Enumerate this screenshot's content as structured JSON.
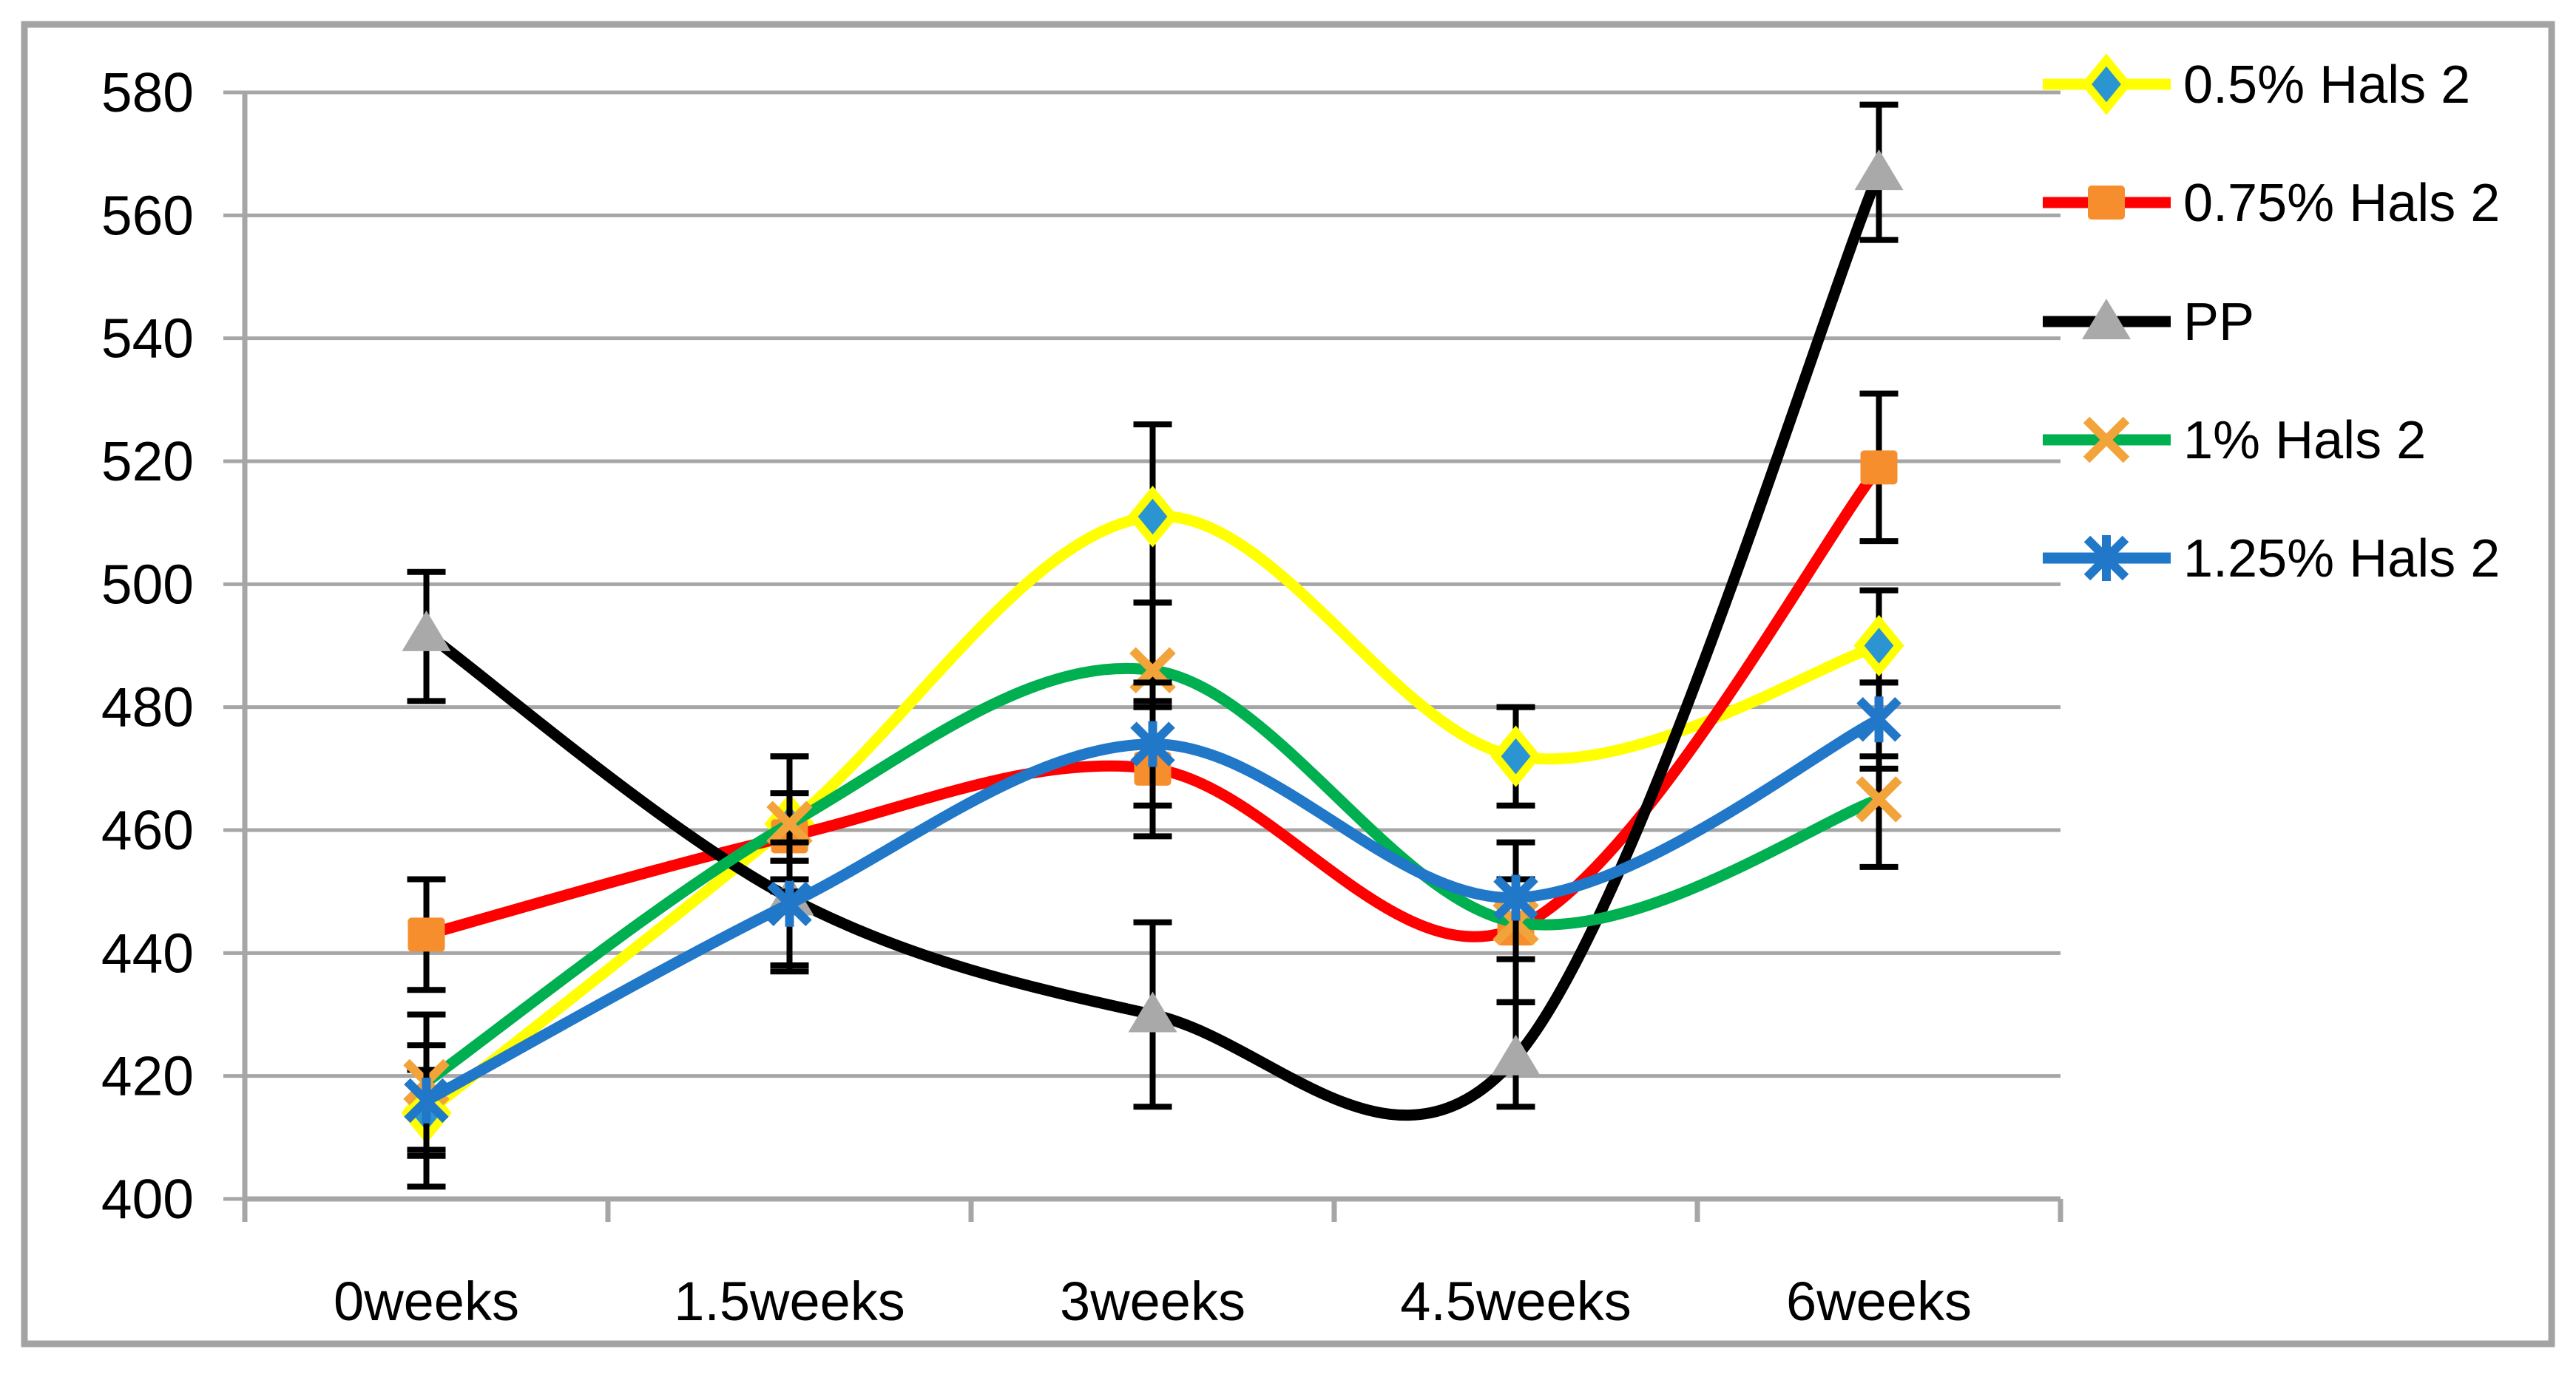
{
  "figure": {
    "background": "#FFFFFF",
    "border_color": "#A3A3A3",
    "border_width": 9
  },
  "chart_data": {
    "type": "line",
    "smooth": true,
    "title": "",
    "xlabel": "",
    "ylabel": "",
    "categories": [
      "0weeks",
      "1.5weeks",
      "3weeks",
      "4.5weeks",
      "6weeks"
    ],
    "ylim": [
      400,
      580
    ],
    "ytick_step": 20,
    "yticks": [
      400,
      420,
      440,
      460,
      480,
      500,
      520,
      540,
      560,
      580
    ],
    "grid": "horizontal",
    "gridline_color": "#A6A6A6",
    "axis_color": "#A6A6A6",
    "text_color": "#000000",
    "error_bar_color": "#000000",
    "legend_position": "right",
    "series": [
      {
        "name": "0.5% Hals 2",
        "line_color": "#FFFF00",
        "marker": "diamond",
        "marker_fill": "#2B95D2",
        "marker_outline": "#FFFF00",
        "values": [
          414,
          461,
          511,
          472,
          490
        ],
        "error_up": [
          7,
          11,
          15,
          8,
          9
        ],
        "error_down": [
          12,
          6,
          14,
          8,
          6
        ]
      },
      {
        "name": "0.75% Hals 2",
        "line_color": "#FF0000",
        "marker": "square",
        "marker_fill": "#F78E2D",
        "marker_outline": "none",
        "values": [
          443,
          459,
          470,
          444,
          519
        ],
        "error_up": [
          9,
          7,
          10,
          8,
          12
        ],
        "error_down": [
          9,
          7,
          11,
          12,
          12
        ]
      },
      {
        "name": "PP",
        "line_color": "#000000",
        "marker": "triangle",
        "marker_fill": "#A9A9A9",
        "marker_outline": "none",
        "values": [
          492,
          449,
          430,
          423,
          567
        ],
        "error_up": [
          10,
          6,
          15,
          9,
          11
        ],
        "error_down": [
          11,
          12,
          15,
          8,
          11
        ]
      },
      {
        "name": "1% Hals 2",
        "line_color": "#00B050",
        "marker": "x",
        "marker_fill": "#F2A33A",
        "marker_outline": "none",
        "values": [
          419,
          461,
          486,
          445,
          465
        ],
        "error_up": [
          11,
          11,
          11,
          7,
          7
        ],
        "error_down": [
          11,
          11,
          5,
          13,
          11
        ]
      },
      {
        "name": "1.25% Hals 2",
        "line_color": "#2177C8",
        "marker": "asterisk",
        "marker_fill": "#2177C8",
        "marker_outline": "none",
        "values": [
          416,
          448,
          474,
          449,
          478
        ],
        "error_up": [
          9,
          10,
          10,
          9,
          6
        ],
        "error_down": [
          9,
          10,
          10,
          10,
          8
        ]
      }
    ]
  }
}
